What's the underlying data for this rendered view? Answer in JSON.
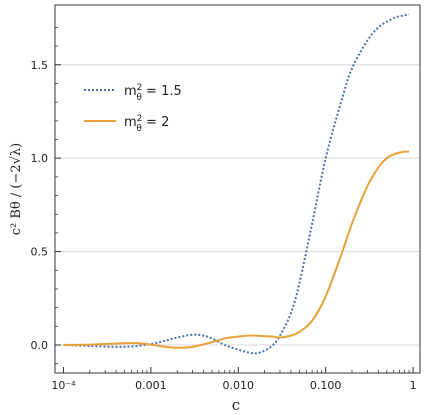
{
  "chart_data": {
    "type": "line",
    "title": "",
    "xlabel": "c",
    "ylabel": "c² Bθ / (−2√λ)",
    "xscale": "log",
    "xlim": [
      8e-05,
      1.2
    ],
    "ylim": [
      -0.15,
      1.82
    ],
    "grid": "horizontal",
    "legend_position": "upper-left",
    "x_ticks": [
      {
        "value": 0.0001,
        "label": "10⁻⁴"
      },
      {
        "value": 0.001,
        "label": "0.001"
      },
      {
        "value": 0.01,
        "label": "0.010"
      },
      {
        "value": 0.1,
        "label": "0.100"
      },
      {
        "value": 1,
        "label": "1"
      }
    ],
    "y_ticks": [
      {
        "value": 0.0,
        "label": "0.0"
      },
      {
        "value": 0.5,
        "label": "0.5"
      },
      {
        "value": 1.0,
        "label": "1.0"
      },
      {
        "value": 1.5,
        "label": "1.5"
      }
    ],
    "series": [
      {
        "name": "mθ² = 1.5",
        "legend_main": "m",
        "legend_sup": "2",
        "legend_sub": "θ",
        "legend_rest": " = 1.5",
        "color": "#4a72b0",
        "style": "dotted",
        "x": [
          0.0001,
          0.0002,
          0.0005,
          0.001,
          0.0015,
          0.002,
          0.003,
          0.004,
          0.005,
          0.007,
          0.01,
          0.013,
          0.016,
          0.02,
          0.025,
          0.03,
          0.04,
          0.05,
          0.07,
          0.1,
          0.15,
          0.2,
          0.3,
          0.4,
          0.5,
          0.6,
          0.7,
          0.8,
          0.9
        ],
        "y": [
          0.0,
          -0.005,
          -0.01,
          0.005,
          0.025,
          0.04,
          0.055,
          0.05,
          0.035,
          0.0,
          -0.025,
          -0.04,
          -0.045,
          -0.03,
          0.0,
          0.05,
          0.17,
          0.33,
          0.65,
          1.0,
          1.3,
          1.48,
          1.63,
          1.7,
          1.73,
          1.75,
          1.76,
          1.765,
          1.77
        ]
      },
      {
        "name": "mθ² = 2",
        "legend_main": "m",
        "legend_sup": "2",
        "legend_sub": "θ",
        "legend_rest": " = 2",
        "color": "#e8a23a",
        "style": "solid",
        "x": [
          0.0001,
          0.0002,
          0.0004,
          0.0007,
          0.001,
          0.0015,
          0.002,
          0.003,
          0.005,
          0.007,
          0.01,
          0.013,
          0.016,
          0.02,
          0.025,
          0.03,
          0.04,
          0.05,
          0.07,
          0.1,
          0.15,
          0.2,
          0.3,
          0.4,
          0.5,
          0.6,
          0.7,
          0.8,
          0.9
        ],
        "y": [
          0.0,
          0.002,
          0.008,
          0.01,
          0.002,
          -0.01,
          -0.015,
          -0.01,
          0.015,
          0.035,
          0.045,
          0.05,
          0.05,
          0.047,
          0.045,
          0.04,
          0.05,
          0.07,
          0.13,
          0.26,
          0.48,
          0.65,
          0.85,
          0.95,
          1.0,
          1.02,
          1.03,
          1.035,
          1.035
        ]
      }
    ]
  }
}
